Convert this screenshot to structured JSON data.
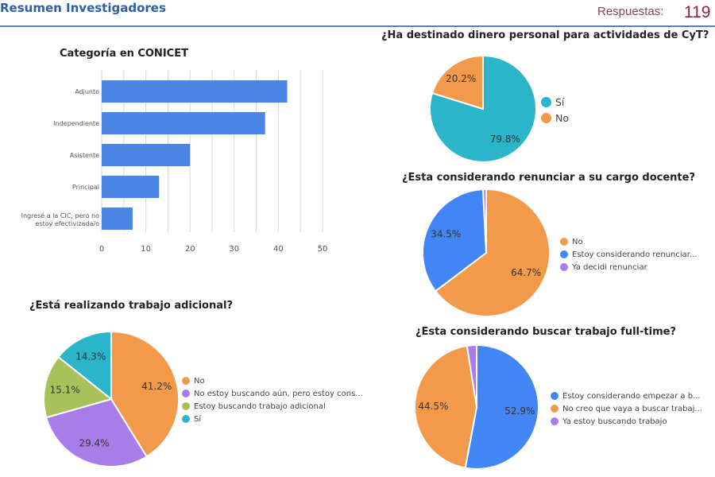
{
  "header": {
    "title": "Resumen Investigadores",
    "responses_label": "Respuestas:",
    "responses_count": "119"
  },
  "colors": {
    "orange": "#f2994a",
    "blue": "#4285f4",
    "purple": "#a87de8",
    "teal": "#2bb5c8",
    "olive": "#a9c15a",
    "bar": "#4a86e8"
  },
  "chart_data": [
    {
      "type": "bar",
      "orientation": "horizontal",
      "title": "Categoría en CONICET",
      "categories": [
        "Adjunto",
        "Independiente",
        "Asistente",
        "Principal",
        "Ingresé a la CIC, pero no estoy efectivizada/o"
      ],
      "values": [
        42,
        37,
        20,
        13,
        7
      ],
      "xlim": [
        0,
        50
      ],
      "xticks": [
        "0",
        "10",
        "20",
        "30",
        "40",
        "50"
      ],
      "grid": true,
      "color": "#4a86e8"
    },
    {
      "type": "pie",
      "title": "¿Ha destinado dinero personal para actividades de CyT?",
      "legend_position": "right",
      "slices": [
        {
          "label": "Sí",
          "value": 79.8,
          "text": "79.8%",
          "color": "#2bb5c8"
        },
        {
          "label": "No",
          "value": 20.2,
          "text": "20.2%",
          "color": "#f2994a"
        }
      ]
    },
    {
      "type": "pie",
      "title": "¿Esta considerando renunciar a su cargo docente?",
      "legend_position": "right",
      "slices": [
        {
          "label": "No",
          "value": 64.7,
          "text": "64.7%",
          "color": "#f2994a"
        },
        {
          "label": "Estoy considerando renunciar...",
          "value": 34.5,
          "text": "34.5%",
          "color": "#4285f4"
        },
        {
          "label": "Ya decidi renunciar",
          "value": 0.8,
          "text": "",
          "color": "#a87de8"
        }
      ]
    },
    {
      "type": "pie",
      "title": "¿Esta considerando buscar trabajo full-time?",
      "legend_position": "right",
      "slices": [
        {
          "label": "Estoy considerando empezar a b...",
          "value": 52.9,
          "text": "52.9%",
          "color": "#4285f4"
        },
        {
          "label": "No creo que vaya a buscar trabaj...",
          "value": 44.5,
          "text": "44.5%",
          "color": "#f2994a"
        },
        {
          "label": "Ya estoy buscando trabajo",
          "value": 2.5,
          "text": "",
          "color": "#a87de8"
        }
      ]
    },
    {
      "type": "pie",
      "title": "¿Está realizando trabajo adicional?",
      "legend_position": "right",
      "slices": [
        {
          "label": "No",
          "value": 41.2,
          "text": "41.2%",
          "color": "#f2994a"
        },
        {
          "label": "No estoy buscando aún, pero estoy cons...",
          "value": 29.4,
          "text": "29.4%",
          "color": "#a87de8"
        },
        {
          "label": "Estoy buscando trabajo adicional",
          "value": 15.1,
          "text": "15.1%",
          "color": "#a9c15a"
        },
        {
          "label": "Sí",
          "value": 14.3,
          "text": "14.3%",
          "color": "#2bb5c8"
        }
      ]
    }
  ]
}
